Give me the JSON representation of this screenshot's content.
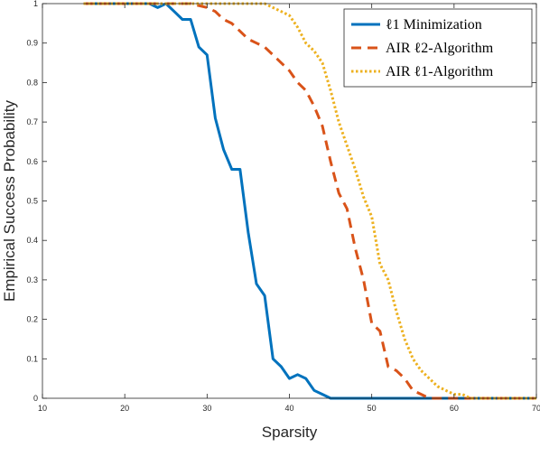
{
  "chart_data": {
    "type": "line",
    "xlabel": "Sparsity",
    "ylabel": "Empirical Success Probability",
    "xlim": [
      10,
      70
    ],
    "ylim": [
      0,
      1
    ],
    "xticks": [
      10,
      20,
      30,
      40,
      50,
      60,
      70
    ],
    "yticks": [
      0,
      0.1,
      0.2,
      0.3,
      0.4,
      0.5,
      0.6,
      0.7,
      0.8,
      0.9,
      1
    ],
    "legend_position": "top-right",
    "grid": false,
    "series": [
      {
        "name": "ℓ1 Minimization",
        "color": "#0072BD",
        "style": "solid",
        "x": [
          15,
          16,
          17,
          18,
          19,
          20,
          21,
          22,
          23,
          24,
          25,
          26,
          27,
          28,
          29,
          30,
          31,
          32,
          33,
          34,
          35,
          36,
          37,
          38,
          39,
          40,
          41,
          42,
          43,
          44,
          45,
          46,
          47,
          48,
          49,
          50,
          55,
          60,
          65,
          70
        ],
        "y": [
          1,
          1,
          1,
          1,
          1,
          1,
          1,
          1,
          1,
          0.99,
          1,
          0.98,
          0.96,
          0.96,
          0.89,
          0.87,
          0.71,
          0.63,
          0.58,
          0.58,
          0.42,
          0.29,
          0.26,
          0.1,
          0.08,
          0.05,
          0.06,
          0.05,
          0.02,
          0.01,
          0,
          0,
          0,
          0,
          0,
          0,
          0,
          0,
          0,
          0
        ]
      },
      {
        "name": "AIR ℓ2-Algorithm",
        "color": "#D95319",
        "style": "dashed",
        "x": [
          15,
          20,
          25,
          28,
          30,
          31,
          32,
          33,
          34,
          35,
          36,
          37,
          38,
          39,
          40,
          41,
          42,
          43,
          44,
          45,
          46,
          47,
          48,
          49,
          50,
          51,
          52,
          53,
          54,
          55,
          56,
          57,
          58,
          60,
          65,
          70
        ],
        "y": [
          1,
          1,
          1,
          1,
          0.99,
          0.98,
          0.96,
          0.95,
          0.93,
          0.91,
          0.9,
          0.89,
          0.87,
          0.85,
          0.83,
          0.8,
          0.78,
          0.74,
          0.69,
          0.6,
          0.52,
          0.48,
          0.38,
          0.3,
          0.19,
          0.17,
          0.08,
          0.07,
          0.05,
          0.02,
          0.01,
          0,
          0,
          0,
          0,
          0
        ]
      },
      {
        "name": "AIR ℓ1-Algorithm",
        "color": "#EDB120",
        "style": "dotted",
        "x": [
          15,
          20,
          25,
          30,
          33,
          35,
          36,
          37,
          38,
          39,
          40,
          41,
          42,
          43,
          44,
          45,
          46,
          47,
          48,
          49,
          50,
          51,
          52,
          53,
          54,
          55,
          56,
          57,
          58,
          59,
          60,
          61,
          62,
          65,
          70
        ],
        "y": [
          1,
          1,
          1,
          1,
          1,
          1,
          1,
          1,
          0.99,
          0.98,
          0.97,
          0.94,
          0.9,
          0.88,
          0.85,
          0.78,
          0.7,
          0.64,
          0.58,
          0.51,
          0.46,
          0.34,
          0.3,
          0.22,
          0.15,
          0.1,
          0.07,
          0.05,
          0.03,
          0.02,
          0.01,
          0.01,
          0,
          0,
          0
        ]
      }
    ]
  }
}
